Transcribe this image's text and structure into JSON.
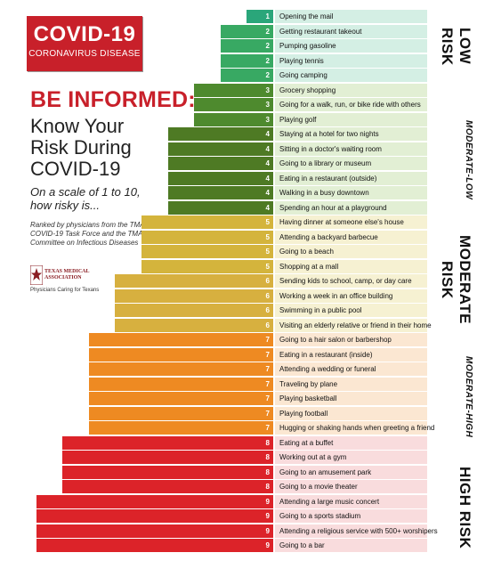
{
  "header": {
    "logo_title": "COVID-19",
    "logo_subtitle": "CORONAVIRUS DISEASE",
    "be_informed": "BE INFORMED:",
    "know_line1": "Know Your",
    "know_line2": "Risk During",
    "know_line3": "COVID-19",
    "scale_line1": "On a scale of 1 to 10,",
    "scale_line2": "how risky is...",
    "ranked_text": "Ranked by physicians from the TMA COVID-19 Task Force and the TMA Committee on Infectious Diseases",
    "tma_name_line1": "TEXAS MEDICAL",
    "tma_name_line2": "ASSOCIATION",
    "tma_tagline": "Physicians Caring for Texans"
  },
  "risk_bands": {
    "low": "LOW RISK",
    "moderate_low": "MODERATE-LOW",
    "moderate": "MODERATE RISK",
    "moderate_high": "MODERATE-HIGH",
    "high": "HIGH RISK"
  },
  "colors": {
    "brand_red": "#c8202a",
    "score_1": "#2aa67a",
    "score_2": "#38a963",
    "score_3": "#4e8a2e",
    "score_4": "#4e7a24",
    "score_5": "#d4b43c",
    "score_6": "#d7b03f",
    "score_7": "#ee8a22",
    "score_8": "#dc2329",
    "score_9": "#dc2329"
  },
  "chart_data": {
    "type": "bar",
    "orientation": "horizontal",
    "title": "Know Your Risk During COVID-19",
    "xlim": [
      0,
      10
    ],
    "categories": [
      "Opening the mail",
      "Getting restaurant takeout",
      "Pumping gasoline",
      "Playing tennis",
      "Going camping",
      "Grocery shopping",
      "Going for a walk, run, or bike ride with others",
      "Playing golf",
      "Staying at a hotel for two nights",
      "Sitting in a doctor's waiting room",
      "Going to a library or museum",
      "Eating in a restaurant (outside)",
      "Walking in a busy downtown",
      "Spending an hour at a playground",
      "Having dinner at someone else's house",
      "Attending a backyard barbecue",
      "Going to a beach",
      "Shopping at a mall",
      "Sending kids to school, camp, or day care",
      "Working a week in an office building",
      "Swimming in a public pool",
      "Visiting an elderly relative or friend in their home",
      "Going to a hair salon or barbershop",
      "Eating in a restaurant (inside)",
      "Attending a wedding or funeral",
      "Traveling by plane",
      "Playing basketball",
      "Playing football",
      "Hugging or shaking hands when greeting a friend",
      "Eating at a buffet",
      "Working out at a gym",
      "Going to an amusement park",
      "Going to a movie theater",
      "Attending a large music concert",
      "Going to a sports stadium",
      "Attending a religious service with 500+ worshipers",
      "Going to a bar"
    ],
    "values": [
      1,
      2,
      2,
      2,
      2,
      3,
      3,
      3,
      4,
      4,
      4,
      4,
      4,
      4,
      5,
      5,
      5,
      5,
      6,
      6,
      6,
      6,
      7,
      7,
      7,
      7,
      7,
      7,
      7,
      8,
      8,
      8,
      8,
      9,
      9,
      9,
      9
    ]
  }
}
